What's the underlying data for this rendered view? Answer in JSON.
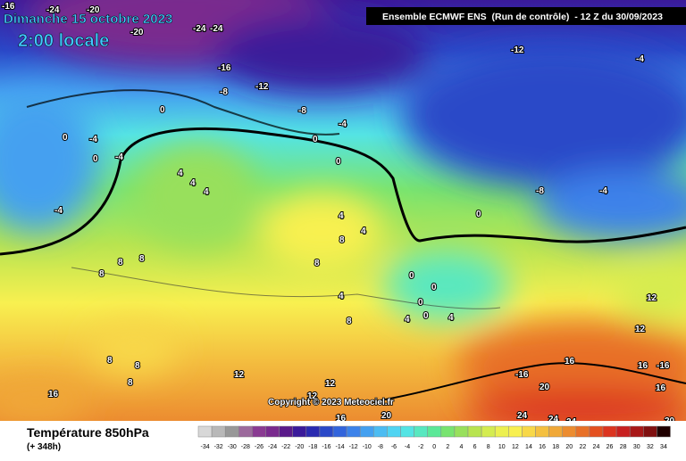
{
  "map": {
    "title": "Dimanche 15 octobre 2023",
    "subtitle": "2:00 locale",
    "header": "Ensemble ECMWF ENS  (Run de contrôle)  - 12 Z du 30/09/2023",
    "copyright": "Copyright © 2023 Meteociel.fr",
    "variable": "Température 850hPa",
    "lead_time": "(+ 348h)",
    "contour_labels": [
      -16,
      -24,
      -20,
      -20,
      -24,
      -24,
      -16,
      -8,
      -12,
      -12,
      -4,
      0,
      -8,
      -4,
      0,
      -4,
      0,
      0,
      -4,
      0,
      4,
      4,
      4,
      -8,
      -4,
      -4,
      0,
      4,
      4,
      8,
      8,
      8,
      8,
      8,
      0,
      0,
      4,
      0,
      12,
      4,
      0,
      4,
      8,
      12,
      8,
      8,
      16,
      16,
      -16,
      12,
      -16,
      8,
      12,
      20,
      16,
      16,
      12,
      16,
      20,
      24,
      24,
      24,
      20
    ],
    "legend": {
      "values": [
        -34,
        -32,
        -30,
        -28,
        -26,
        -24,
        -22,
        -20,
        -18,
        -16,
        -14,
        -12,
        -10,
        -8,
        -6,
        -4,
        -2,
        0,
        2,
        4,
        6,
        8,
        10,
        12,
        14,
        16,
        18,
        20,
        22,
        24,
        26,
        28,
        30,
        32,
        34
      ],
      "colors": [
        "#d8d8d8",
        "#b8b8b8",
        "#989898",
        "#9c6a9c",
        "#8a3a92",
        "#7a2a8e",
        "#5a1a8a",
        "#3a1a9a",
        "#2a2ab0",
        "#2a48c8",
        "#3264dc",
        "#3c82ea",
        "#44a0f0",
        "#4cbcf2",
        "#50d4f2",
        "#54e4e4",
        "#58e8c0",
        "#5ce898",
        "#78e470",
        "#98e05c",
        "#b8e450",
        "#d4ec50",
        "#ecf050",
        "#f8f050",
        "#f8d848",
        "#f4c040",
        "#f0a838",
        "#ec8c30",
        "#e87028",
        "#e45020",
        "#dc3420",
        "#c82020",
        "#a81818",
        "#801010",
        "#200000"
      ]
    }
  }
}
